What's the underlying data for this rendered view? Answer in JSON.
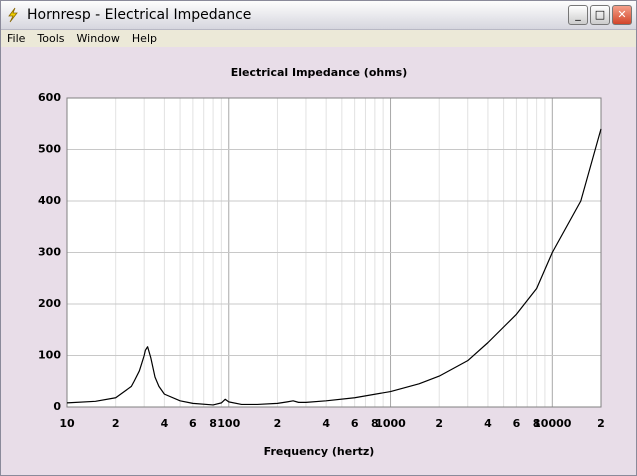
{
  "window": {
    "title": "Hornresp - Electrical Impedance",
    "menu": [
      "File",
      "Tools",
      "Window",
      "Help"
    ]
  },
  "chart_data": {
    "type": "line",
    "title": "Electrical Impedance (ohms)",
    "x_label": "Frequency (hertz)",
    "log_x": true,
    "grid": true,
    "color": "#000000",
    "xlim": [
      10,
      20000
    ],
    "ylim": [
      0,
      600
    ],
    "yticks": [
      0,
      100,
      200,
      300,
      400,
      500,
      600
    ],
    "xticks": [
      {
        "value": 10,
        "label": "10"
      },
      {
        "value": 20,
        "label": "2"
      },
      {
        "value": 30,
        "label": null
      },
      {
        "value": 40,
        "label": "4"
      },
      {
        "value": 50,
        "label": null
      },
      {
        "value": 60,
        "label": "6"
      },
      {
        "value": 70,
        "label": null
      },
      {
        "value": 80,
        "label": "8"
      },
      {
        "value": 90,
        "label": null
      },
      {
        "value": 100,
        "label": "100"
      },
      {
        "value": 200,
        "label": "2"
      },
      {
        "value": 300,
        "label": null
      },
      {
        "value": 400,
        "label": "4"
      },
      {
        "value": 500,
        "label": null
      },
      {
        "value": 600,
        "label": "6"
      },
      {
        "value": 700,
        "label": null
      },
      {
        "value": 800,
        "label": "8"
      },
      {
        "value": 900,
        "label": null
      },
      {
        "value": 1000,
        "label": "1000"
      },
      {
        "value": 2000,
        "label": "2"
      },
      {
        "value": 3000,
        "label": null
      },
      {
        "value": 4000,
        "label": "4"
      },
      {
        "value": 5000,
        "label": null
      },
      {
        "value": 6000,
        "label": "6"
      },
      {
        "value": 7000,
        "label": null
      },
      {
        "value": 8000,
        "label": "8"
      },
      {
        "value": 9000,
        "label": null
      },
      {
        "value": 10000,
        "label": "10000"
      },
      {
        "value": 20000,
        "label": "2"
      }
    ],
    "x": [
      10,
      15,
      20,
      25,
      26,
      28,
      29,
      30,
      30.5,
      31.5,
      33,
      35,
      37,
      40,
      50,
      60,
      80,
      90,
      95,
      100,
      120,
      150,
      200,
      230,
      250,
      270,
      300,
      400,
      600,
      1000,
      1500,
      2000,
      3000,
      4000,
      6000,
      8000,
      10000,
      15000,
      20000
    ],
    "values": [
      8,
      11,
      18,
      40,
      50,
      70,
      85,
      100,
      110,
      117,
      95,
      58,
      40,
      25,
      12,
      7,
      4,
      8,
      15,
      10,
      5,
      5,
      7,
      10,
      12,
      9,
      9,
      12,
      18,
      30,
      45,
      60,
      90,
      125,
      180,
      230,
      300,
      400,
      540
    ]
  }
}
